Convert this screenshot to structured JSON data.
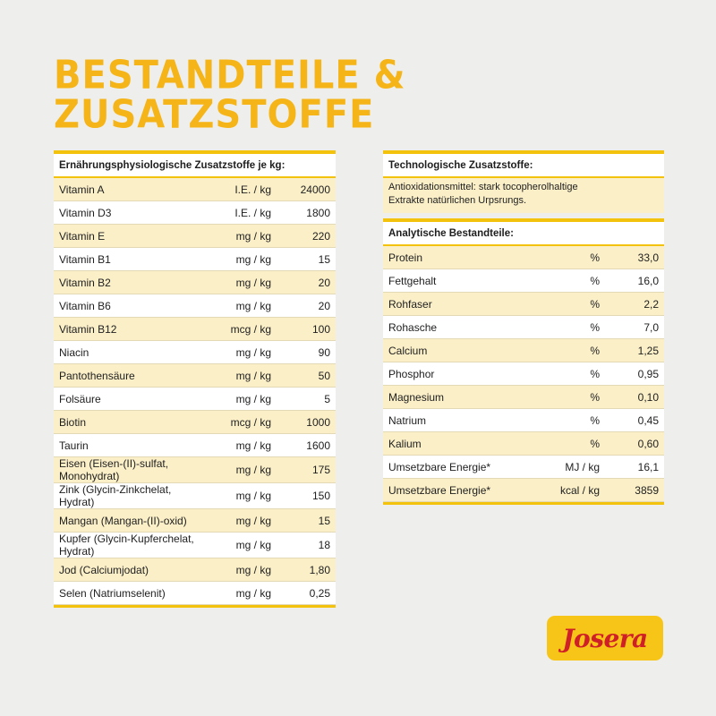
{
  "title": "BESTANDTEILE & ZUSATZSTOFFE",
  "left_table": {
    "header": "Ernährungsphysiologische Zusatzstoffe je kg:",
    "rows": [
      {
        "name": "Vitamin A",
        "unit": "I.E. / kg",
        "value": "24000"
      },
      {
        "name": "Vitamin D3",
        "unit": "I.E. / kg",
        "value": "1800"
      },
      {
        "name": "Vitamin E",
        "unit": "mg / kg",
        "value": "220"
      },
      {
        "name": "Vitamin B1",
        "unit": "mg / kg",
        "value": "15"
      },
      {
        "name": "Vitamin B2",
        "unit": "mg / kg",
        "value": "20"
      },
      {
        "name": "Vitamin B6",
        "unit": "mg / kg",
        "value": "20"
      },
      {
        "name": "Vitamin B12",
        "unit": "mcg / kg",
        "value": "100"
      },
      {
        "name": "Niacin",
        "unit": "mg / kg",
        "value": "90"
      },
      {
        "name": "Pantothensäure",
        "unit": "mg / kg",
        "value": "50"
      },
      {
        "name": "Folsäure",
        "unit": "mg / kg",
        "value": "5"
      },
      {
        "name": "Biotin",
        "unit": "mcg / kg",
        "value": "1000"
      },
      {
        "name": "Taurin",
        "unit": "mg / kg",
        "value": "1600"
      },
      {
        "name": "Eisen (Eisen-(II)-sulfat, Monohydrat)",
        "unit": "mg / kg",
        "value": "175"
      },
      {
        "name": "Zink (Glycin-Zinkchelat, Hydrat)",
        "unit": "mg / kg",
        "value": "150"
      },
      {
        "name": "Mangan (Mangan-(II)-oxid)",
        "unit": "mg / kg",
        "value": "15"
      },
      {
        "name": "Kupfer (Glycin-Kupferchelat, Hydrat)",
        "unit": "mg / kg",
        "value": "18"
      },
      {
        "name": "Jod (Calciumjodat)",
        "unit": "mg / kg",
        "value": "1,80"
      },
      {
        "name": "Selen (Natriumselenit)",
        "unit": "mg / kg",
        "value": "0,25"
      }
    ]
  },
  "tech_table": {
    "header": "Technologische Zusatzstoffe:",
    "text_line1": "Antioxidationsmittel: stark tocopherolhaltige",
    "text_line2": "Extrakte natürlichen Urpsrungs."
  },
  "analytic_table": {
    "header": "Analytische Bestandteile:",
    "rows": [
      {
        "name": "Protein",
        "unit": "%",
        "value": "33,0"
      },
      {
        "name": "Fettgehalt",
        "unit": "%",
        "value": "16,0"
      },
      {
        "name": "Rohfaser",
        "unit": "%",
        "value": "2,2"
      },
      {
        "name": "Rohasche",
        "unit": "%",
        "value": "7,0"
      },
      {
        "name": "Calcium",
        "unit": "%",
        "value": "1,25"
      },
      {
        "name": "Phosphor",
        "unit": "%",
        "value": "0,95"
      },
      {
        "name": "Magnesium",
        "unit": "%",
        "value": "0,10"
      },
      {
        "name": "Natrium",
        "unit": "%",
        "value": "0,45"
      },
      {
        "name": "Kalium",
        "unit": "%",
        "value": "0,60"
      },
      {
        "name": "Umsetzbare Energie*",
        "unit": "MJ / kg",
        "value": "16,1"
      },
      {
        "name": "Umsetzbare Energie*",
        "unit": "kcal / kg",
        "value": "3859"
      }
    ]
  },
  "logo": {
    "text": "Josera"
  },
  "colors": {
    "accent": "#f5b418",
    "row_highlight": "#fbefc8",
    "logo_bg": "#f7c518",
    "logo_text": "#cf2027"
  }
}
